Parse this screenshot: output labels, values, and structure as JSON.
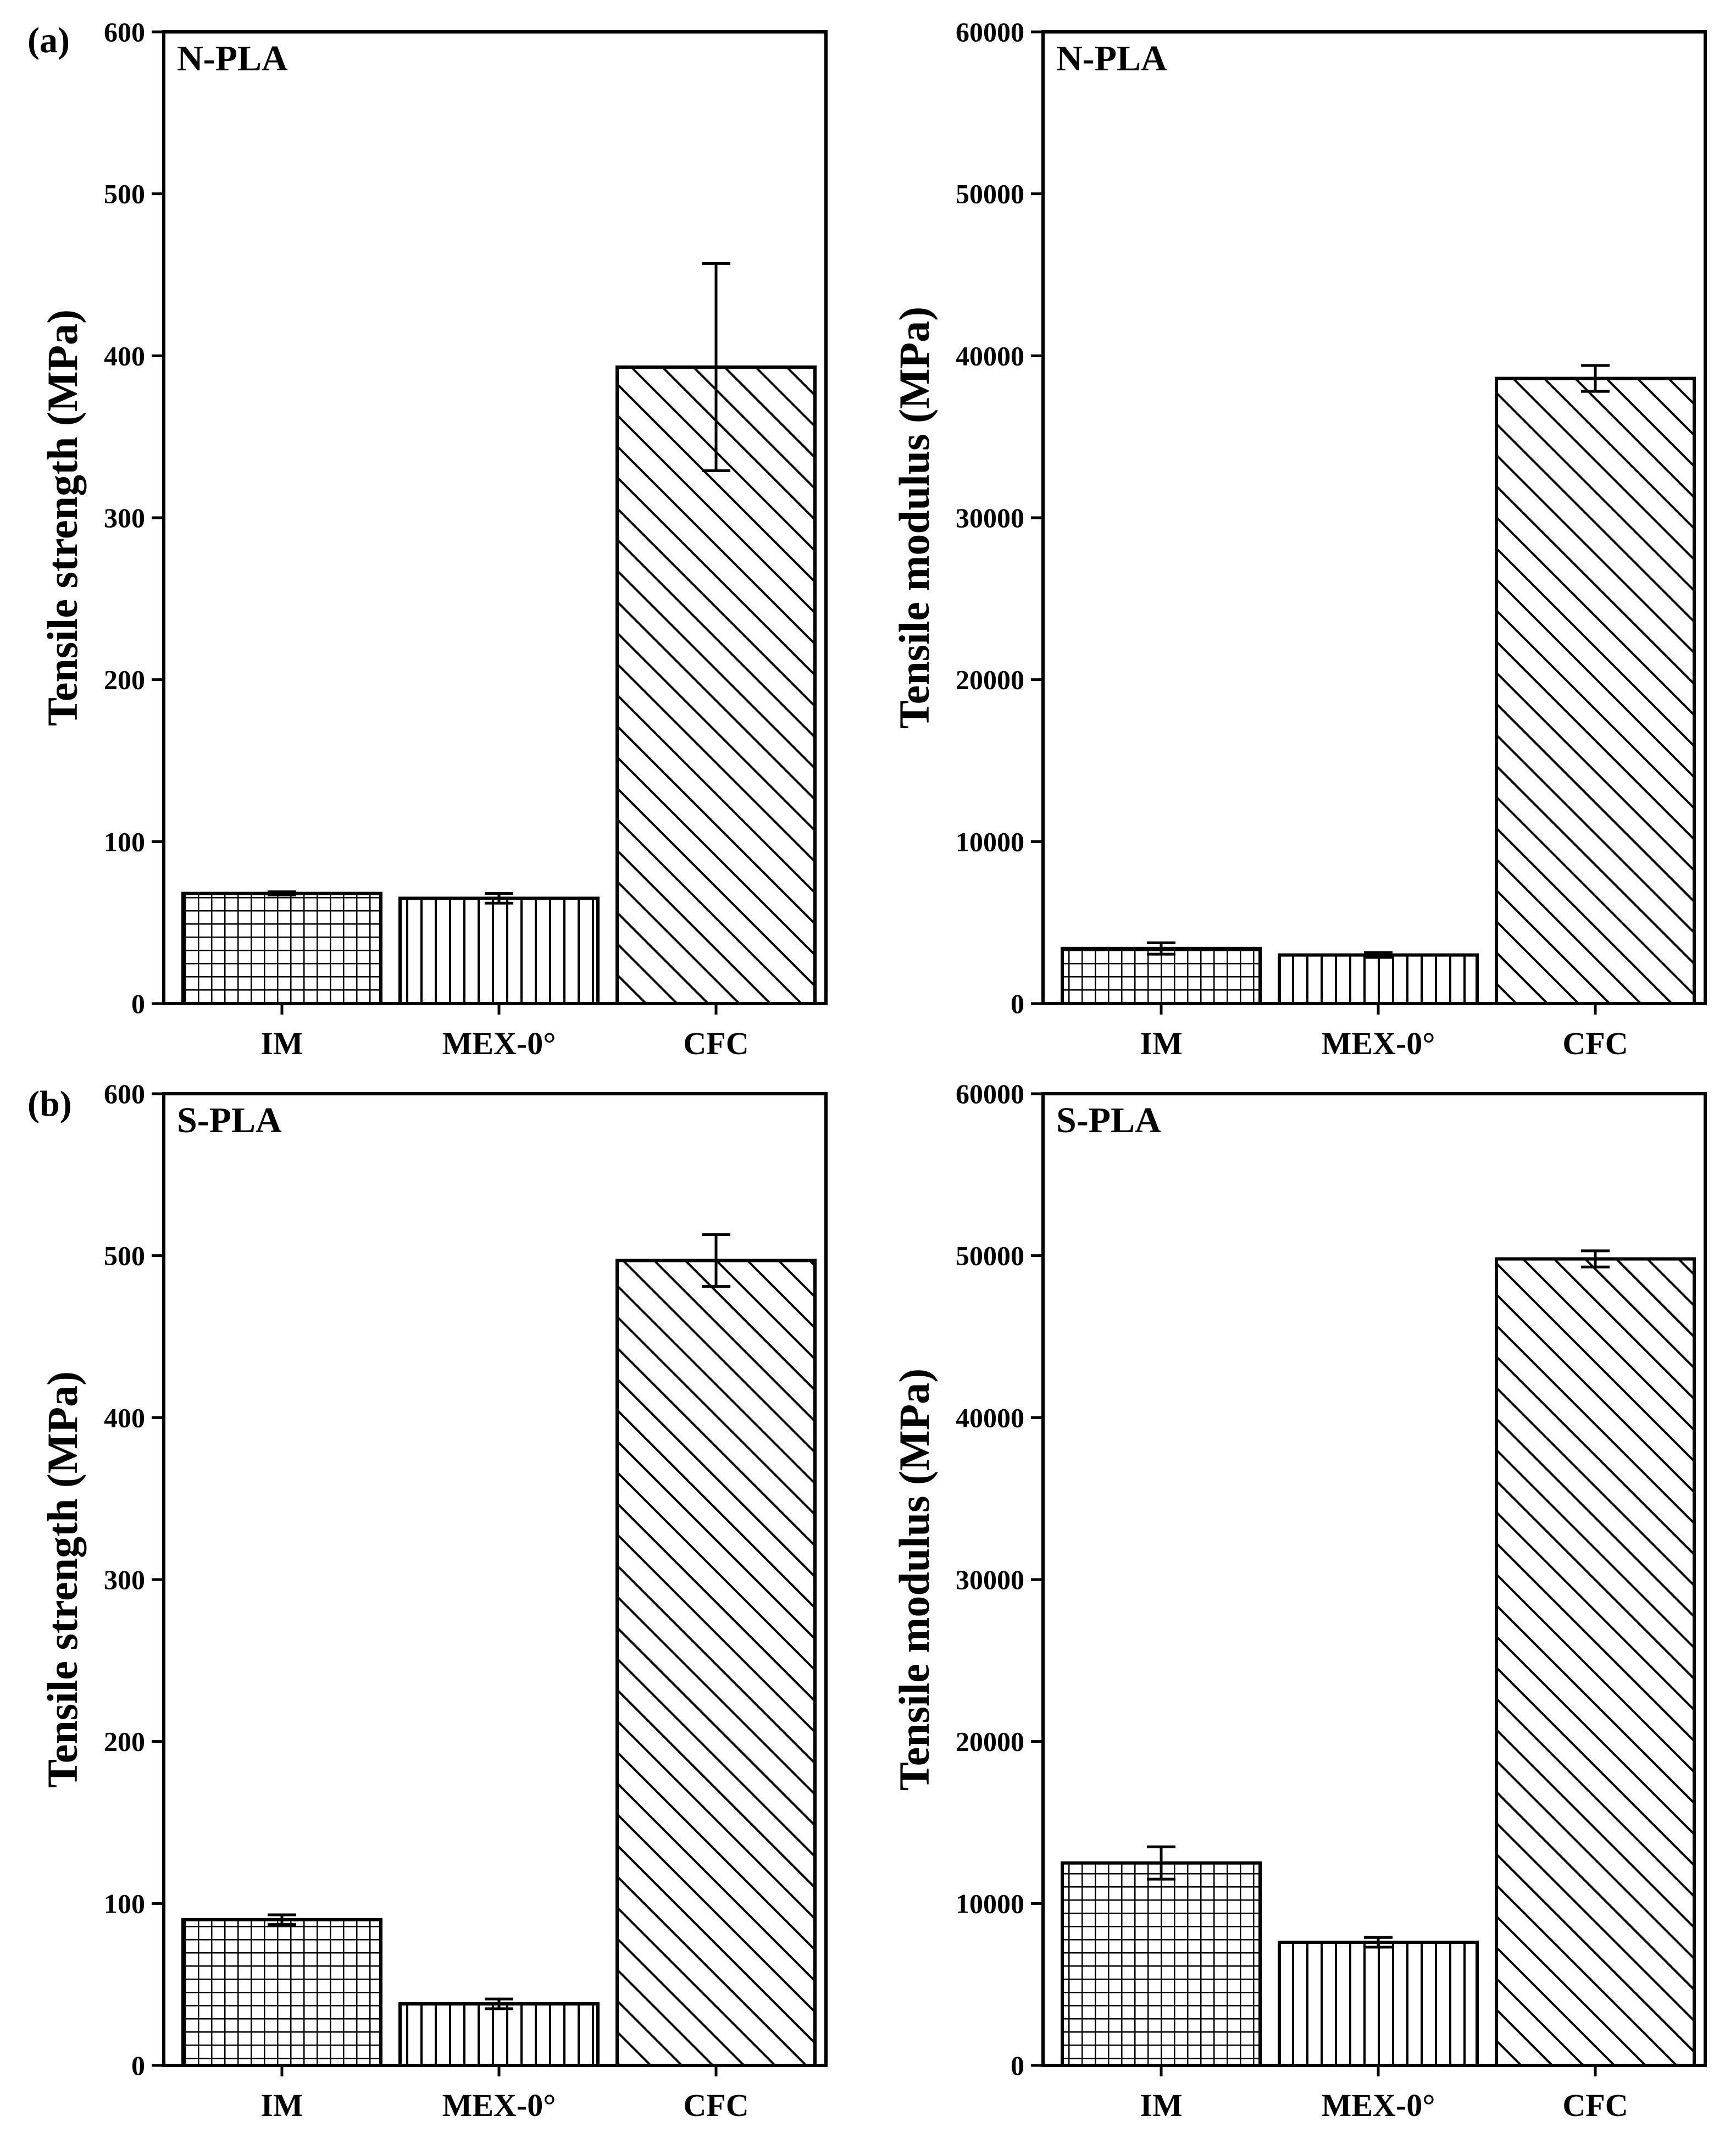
{
  "figure": {
    "panel_labels": [
      "(a)",
      "(b)"
    ]
  },
  "chart_data": [
    {
      "type": "bar",
      "panel": "(a)",
      "title": "N-PLA",
      "xlabel": "",
      "ylabel": "Tensile strength (MPa)",
      "ylim": [
        0,
        600
      ],
      "yticks": [
        "0",
        "100",
        "200",
        "300",
        "400",
        "500",
        "600"
      ],
      "categories": [
        "IM",
        "MEX-0°",
        "CFC"
      ],
      "values": [
        68,
        65,
        393
      ],
      "errors": [
        1,
        3,
        64
      ],
      "patterns": [
        "grid",
        "vertical",
        "diagonal"
      ]
    },
    {
      "type": "bar",
      "panel": "",
      "title": "N-PLA",
      "xlabel": "",
      "ylabel": "Tensile modulus (MPa)",
      "ylim": [
        0,
        60000
      ],
      "yticks": [
        "0",
        "10000",
        "20000",
        "30000",
        "40000",
        "50000",
        "60000"
      ],
      "categories": [
        "IM",
        "MEX-0°",
        "CFC"
      ],
      "values": [
        3400,
        3000,
        38600
      ],
      "errors": [
        350,
        150,
        800
      ],
      "patterns": [
        "grid",
        "vertical",
        "diagonal"
      ]
    },
    {
      "type": "bar",
      "panel": "(b)",
      "title": "S-PLA",
      "xlabel": "",
      "ylabel": "Tensile strength (MPa)",
      "ylim": [
        0,
        600
      ],
      "yticks": [
        "0",
        "100",
        "200",
        "300",
        "400",
        "500",
        "600"
      ],
      "categories": [
        "IM",
        "MEX-0°",
        "CFC"
      ],
      "values": [
        90,
        38,
        497
      ],
      "errors": [
        3,
        3,
        16
      ],
      "patterns": [
        "grid",
        "vertical",
        "diagonal"
      ]
    },
    {
      "type": "bar",
      "panel": "",
      "title": "S-PLA",
      "xlabel": "",
      "ylabel": "Tensile modulus (MPa)",
      "ylim": [
        0,
        60000
      ],
      "yticks": [
        "0",
        "10000",
        "20000",
        "30000",
        "40000",
        "50000",
        "60000"
      ],
      "categories": [
        "IM",
        "MEX-0°",
        "CFC"
      ],
      "values": [
        12500,
        7600,
        49800
      ],
      "errors": [
        1000,
        300,
        500
      ],
      "patterns": [
        "grid",
        "vertical",
        "diagonal"
      ]
    }
  ]
}
